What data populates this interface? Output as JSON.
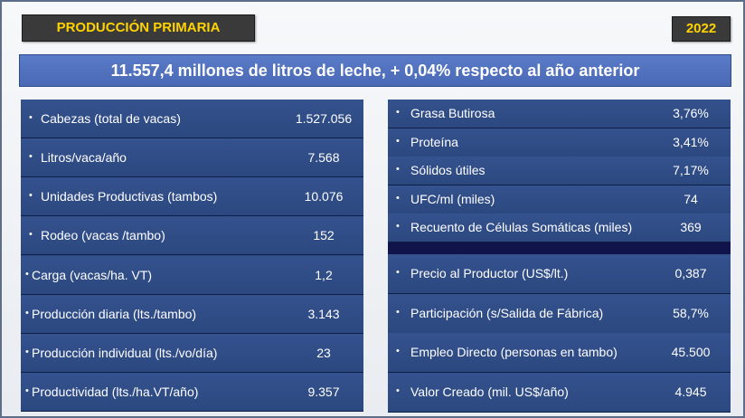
{
  "header": {
    "title": "PRODUCCIÓN PRIMARIA",
    "year": "2022"
  },
  "headline": "11.557,4 millones de litros de leche, + 0,04% respecto al año anterior",
  "left_panel": {
    "rows": [
      {
        "label": "Cabezas (total de vacas)",
        "value": "1.527.056"
      },
      {
        "label": "Litros/vaca/año",
        "value": "7.568"
      },
      {
        "label": "Unidades Productivas (tambos)",
        "value": "10.076"
      },
      {
        "label": "Rodeo (vacas /tambo)",
        "value": "152"
      },
      {
        "label": "Carga (vacas/ha. VT)",
        "value": "1,2"
      },
      {
        "label": "Producción diaria (lts./tambo)",
        "value": "3.143"
      },
      {
        "label": "Producción individual (lts./vo/día)",
        "value": "23"
      },
      {
        "label": "Productividad (lts./ha.VT/año)",
        "value": "9.357"
      }
    ]
  },
  "right_panel": {
    "top_rows": [
      {
        "label": "Grasa Butirosa",
        "value": "3,76%"
      },
      {
        "label": "Proteína",
        "value": "3,41%"
      },
      {
        "label": "Sólidos útiles",
        "value": "7,17%"
      },
      {
        "label": "UFC/ml (miles)",
        "value": "74"
      },
      {
        "label": "Recuento de Células Somáticas (miles)",
        "value": "369"
      }
    ],
    "bottom_rows": [
      {
        "label": "Precio al Productor (US$/lt.)",
        "value": "0,387"
      },
      {
        "label": "Participación (s/Salida de Fábrica)",
        "value": "58,7%"
      },
      {
        "label": "Empleo Directo (personas en tambo)",
        "value": "45.500"
      },
      {
        "label": "Valor Creado (mil. US$/año)",
        "value": "4.945"
      }
    ]
  },
  "bullet": "•",
  "colors": {
    "accent_yellow": "#ffd200",
    "panel_blue": "#2d4a84",
    "headline_blue": "#4f70bd",
    "separator_navy": "#10144a"
  }
}
